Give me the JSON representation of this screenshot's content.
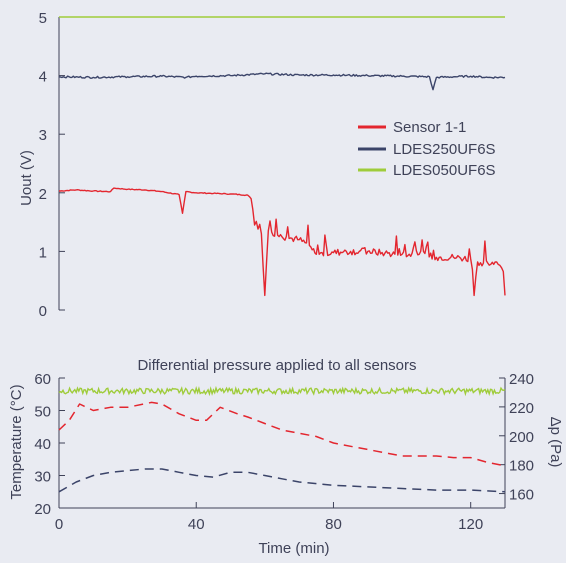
{
  "colors": {
    "background": "#e9ebf2",
    "axis": "#3f4258",
    "sensor": "#e3262f",
    "ldes250": "#3b4469",
    "ldes050": "#9fcc3b"
  },
  "chart_data": [
    {
      "type": "line",
      "title": "",
      "ylabel": "Uout (V)",
      "xlim": [
        0,
        130
      ],
      "ylim": [
        0,
        5
      ],
      "yticks": [
        "0",
        "1",
        "2",
        "3",
        "4",
        "5"
      ],
      "grid": false,
      "legend_position": "right",
      "series": [
        {
          "name": "Sensor 1-1",
          "color": "#e3262f",
          "x": [
            0,
            5,
            10,
            15,
            16,
            20,
            25,
            30,
            35,
            36,
            37,
            40,
            45,
            50,
            55,
            56,
            57,
            58,
            59,
            60,
            61,
            62,
            65,
            70,
            73,
            75,
            80,
            85,
            90,
            95,
            100,
            105,
            110,
            115,
            120,
            121,
            122,
            125,
            128,
            129,
            130
          ],
          "y": [
            2.03,
            2.05,
            2.03,
            2.02,
            2.08,
            2.06,
            2.05,
            2.02,
            1.97,
            1.65,
            2.02,
            2.0,
            1.99,
            1.98,
            1.96,
            1.9,
            1.45,
            1.38,
            1.3,
            0.25,
            1.35,
            1.33,
            1.25,
            1.2,
            1.1,
            0.95,
            0.98,
            1.0,
            1.0,
            0.97,
            0.95,
            0.95,
            0.9,
            0.9,
            0.87,
            0.25,
            0.82,
            0.8,
            0.78,
            0.72,
            0.25
          ]
        },
        {
          "name": "LDES250UF6S",
          "color": "#3b4469",
          "x": [
            0,
            10,
            20,
            30,
            37,
            40,
            50,
            60,
            70,
            80,
            90,
            100,
            108,
            109,
            110,
            115,
            120,
            125,
            130
          ],
          "y": [
            3.98,
            3.97,
            3.98,
            3.99,
            3.97,
            3.99,
            4.0,
            4.03,
            4.01,
            4.01,
            4.0,
            3.99,
            3.98,
            3.76,
            3.97,
            3.98,
            3.99,
            3.97,
            3.97
          ]
        },
        {
          "name": "LDES050UF6S",
          "color": "#9fcc3b",
          "x": [
            0,
            130
          ],
          "y": [
            5.0,
            5.0
          ]
        }
      ]
    },
    {
      "type": "line",
      "title": "Differential pressure applied to all sensors",
      "xlabel": "Time (min)",
      "ylabel": "Temperature (°C)",
      "y2label": "Δp (Pa)",
      "xlim": [
        0,
        130
      ],
      "ylim": [
        20,
        60
      ],
      "y2lim": [
        150,
        240
      ],
      "xticks": [
        "0",
        "40",
        "80",
        "120"
      ],
      "yticks": [
        "20",
        "30",
        "40",
        "50",
        "60"
      ],
      "y2ticks": [
        "160",
        "180",
        "200",
        "220",
        "240"
      ],
      "grid": false,
      "series": [
        {
          "color": "#e3262f",
          "style": "dashed",
          "axis": "left",
          "x": [
            0,
            3,
            6,
            10,
            15,
            20,
            27,
            30,
            35,
            40,
            43,
            47,
            52,
            55,
            60,
            65,
            70,
            75,
            80,
            85,
            90,
            95,
            100,
            105,
            110,
            115,
            120,
            125,
            130
          ],
          "y": [
            44,
            47,
            52,
            50,
            51,
            51,
            52.5,
            52,
            49,
            47,
            47,
            51,
            49,
            48,
            46,
            44,
            43,
            42,
            40,
            39,
            38,
            37,
            36,
            36,
            36,
            35.5,
            35.5,
            34,
            33
          ]
        },
        {
          "color": "#3b4469",
          "style": "dashed",
          "axis": "left",
          "x": [
            0,
            5,
            10,
            15,
            20,
            25,
            30,
            35,
            40,
            45,
            50,
            55,
            60,
            65,
            70,
            80,
            90,
            100,
            110,
            120,
            130
          ],
          "y": [
            25,
            28,
            30,
            31,
            31.5,
            32,
            32,
            31,
            30,
            29.5,
            31,
            31,
            30,
            29,
            28,
            27,
            26.5,
            26,
            25.5,
            25.5,
            25
          ]
        },
        {
          "color": "#9fcc3b",
          "style": "solid",
          "axis": "right",
          "x": [
            0,
            130
          ],
          "y": [
            231,
            231
          ]
        }
      ]
    }
  ]
}
